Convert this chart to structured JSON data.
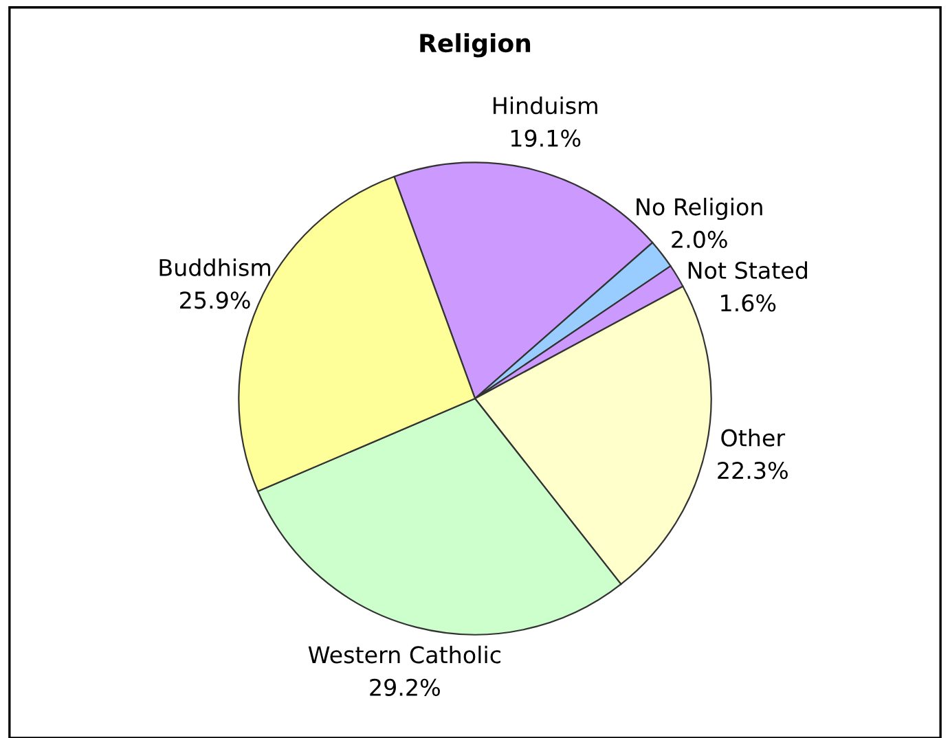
{
  "chart_data": {
    "type": "pie",
    "title": "Religion",
    "categories": [
      "Hinduism",
      "No Religion",
      "Not Stated",
      "Other",
      "Western Catholic",
      "Buddhism"
    ],
    "values": [
      19.1,
      2.0,
      1.6,
      22.3,
      29.2,
      25.9
    ],
    "value_labels": [
      "19.1%",
      "2.0%",
      "1.6%",
      "22.3%",
      "29.2%",
      "25.9%"
    ],
    "colors": [
      "#cc99ff",
      "#99ccff",
      "#cc99ff",
      "#ffffcc",
      "#ccffcc",
      "#ffff99"
    ],
    "legend": false
  }
}
